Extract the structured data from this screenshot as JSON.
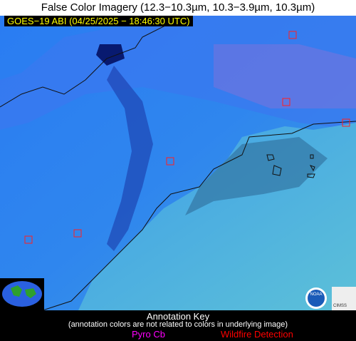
{
  "header": {
    "title": "False Color Imagery (12.3−10.3µm, 10.3−3.9µm, 10.3µm)",
    "timestamp": "GOES−19 ABI (04/25/2025 − 18:46:30 UTC)"
  },
  "legend": {
    "title": "Annotation Key",
    "note": "(annotation colors are not related to colors in underlying image)",
    "items": [
      {
        "label": "Pyro Cb",
        "color": "#ff00ff"
      },
      {
        "label": "Wildfire Detection",
        "color": "#ff0000"
      }
    ]
  },
  "logos": [
    "NOAA",
    "CIMSS"
  ]
}
